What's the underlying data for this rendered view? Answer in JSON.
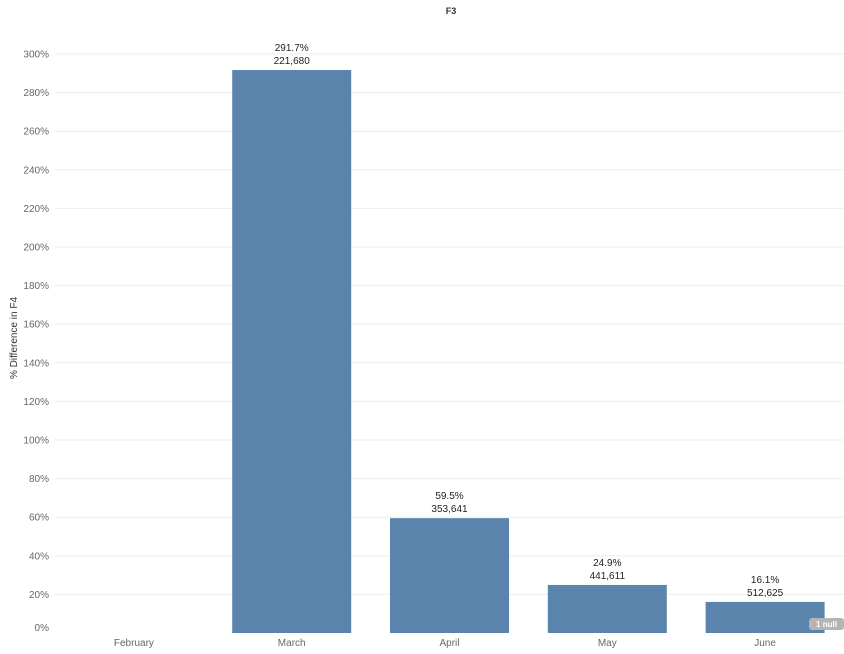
{
  "chart_data": {
    "type": "bar",
    "title": "F3",
    "ylabel": "% Difference in F4",
    "xlabel": "",
    "categories": [
      "February",
      "March",
      "April",
      "May",
      "June"
    ],
    "values": [
      null,
      291.7,
      59.5,
      24.9,
      16.1
    ],
    "percent_labels": [
      "",
      "291.7%",
      "59.5%",
      "24.9%",
      "16.1%"
    ],
    "count_labels": [
      "",
      "221,680",
      "353,641",
      "441,611",
      "512,625"
    ],
    "ylim": [
      0,
      300
    ],
    "yticks": [
      0,
      20,
      40,
      60,
      80,
      100,
      120,
      140,
      160,
      180,
      200,
      220,
      240,
      260,
      280,
      300
    ],
    "ytick_labels": [
      "0%",
      "20%",
      "40%",
      "60%",
      "80%",
      "100%",
      "120%",
      "140%",
      "160%",
      "180%",
      "200%",
      "220%",
      "240%",
      "260%",
      "280%",
      "300%"
    ],
    "grid": true,
    "null_badge": "1 null",
    "colors": {
      "bar": "#5b84ad",
      "grid": "#eeeeee",
      "axis_text": "#666666",
      "label_text": "#222222",
      "badge_bg": "#b5b5b5",
      "badge_text": "#ffffff"
    }
  }
}
